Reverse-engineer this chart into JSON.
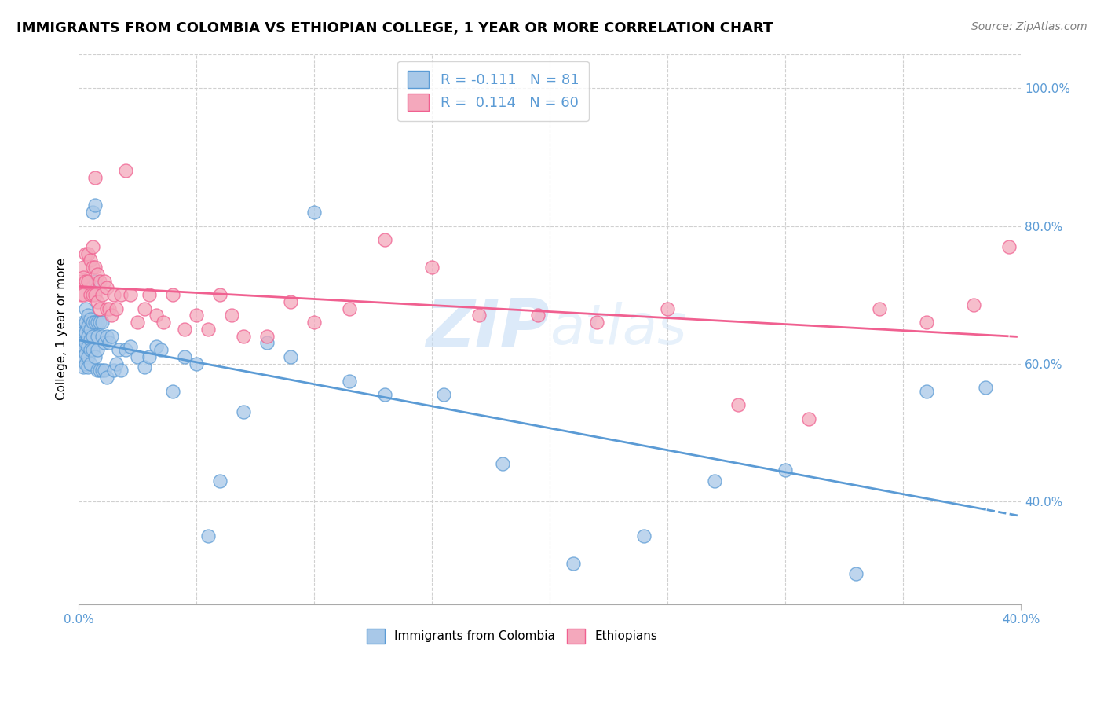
{
  "title": "IMMIGRANTS FROM COLOMBIA VS ETHIOPIAN COLLEGE, 1 YEAR OR MORE CORRELATION CHART",
  "source": "Source: ZipAtlas.com",
  "ylabel": "College, 1 year or more",
  "legend_colombia": "Immigrants from Colombia",
  "legend_ethiopians": "Ethiopians",
  "R_colombia": -0.111,
  "N_colombia": 81,
  "R_ethiopians": 0.114,
  "N_ethiopians": 60,
  "color_colombia": "#a8c8e8",
  "color_colombia_line": "#5b9bd5",
  "color_ethiopians": "#f4a8bc",
  "color_ethiopians_line": "#f06090",
  "watermark_zip": "ZIP",
  "watermark_atlas": "atlas",
  "colombia_x": [
    0.001,
    0.001,
    0.001,
    0.001,
    0.002,
    0.002,
    0.002,
    0.002,
    0.002,
    0.002,
    0.003,
    0.003,
    0.003,
    0.003,
    0.003,
    0.003,
    0.004,
    0.004,
    0.004,
    0.004,
    0.004,
    0.004,
    0.005,
    0.005,
    0.005,
    0.005,
    0.005,
    0.006,
    0.006,
    0.006,
    0.006,
    0.007,
    0.007,
    0.007,
    0.007,
    0.008,
    0.008,
    0.008,
    0.008,
    0.009,
    0.009,
    0.01,
    0.01,
    0.01,
    0.011,
    0.011,
    0.012,
    0.012,
    0.013,
    0.014,
    0.015,
    0.016,
    0.017,
    0.018,
    0.02,
    0.022,
    0.025,
    0.028,
    0.03,
    0.033,
    0.035,
    0.04,
    0.045,
    0.05,
    0.055,
    0.06,
    0.07,
    0.08,
    0.09,
    0.1,
    0.115,
    0.13,
    0.155,
    0.18,
    0.21,
    0.24,
    0.27,
    0.3,
    0.33,
    0.36,
    0.385
  ],
  "colombia_y": [
    0.65,
    0.63,
    0.62,
    0.61,
    0.66,
    0.645,
    0.63,
    0.62,
    0.61,
    0.595,
    0.68,
    0.66,
    0.645,
    0.63,
    0.615,
    0.6,
    0.67,
    0.655,
    0.64,
    0.625,
    0.61,
    0.595,
    0.665,
    0.65,
    0.635,
    0.62,
    0.6,
    0.82,
    0.66,
    0.64,
    0.62,
    0.83,
    0.72,
    0.66,
    0.61,
    0.66,
    0.64,
    0.62,
    0.59,
    0.66,
    0.59,
    0.66,
    0.64,
    0.59,
    0.63,
    0.59,
    0.64,
    0.58,
    0.63,
    0.64,
    0.59,
    0.6,
    0.62,
    0.59,
    0.62,
    0.625,
    0.61,
    0.595,
    0.61,
    0.625,
    0.62,
    0.56,
    0.61,
    0.6,
    0.35,
    0.43,
    0.53,
    0.63,
    0.61,
    0.82,
    0.575,
    0.555,
    0.555,
    0.455,
    0.31,
    0.35,
    0.43,
    0.445,
    0.295,
    0.56,
    0.565
  ],
  "ethiopian_x": [
    0.001,
    0.001,
    0.002,
    0.002,
    0.002,
    0.003,
    0.003,
    0.004,
    0.004,
    0.005,
    0.005,
    0.006,
    0.006,
    0.006,
    0.007,
    0.007,
    0.007,
    0.008,
    0.008,
    0.009,
    0.009,
    0.01,
    0.011,
    0.012,
    0.012,
    0.013,
    0.014,
    0.015,
    0.016,
    0.018,
    0.02,
    0.022,
    0.025,
    0.028,
    0.03,
    0.033,
    0.036,
    0.04,
    0.045,
    0.05,
    0.055,
    0.06,
    0.065,
    0.07,
    0.08,
    0.09,
    0.1,
    0.115,
    0.13,
    0.15,
    0.17,
    0.195,
    0.22,
    0.25,
    0.28,
    0.31,
    0.34,
    0.36,
    0.38,
    0.395
  ],
  "ethiopian_y": [
    0.72,
    0.7,
    0.74,
    0.725,
    0.7,
    0.76,
    0.72,
    0.76,
    0.72,
    0.75,
    0.7,
    0.77,
    0.74,
    0.7,
    0.87,
    0.74,
    0.7,
    0.73,
    0.69,
    0.72,
    0.68,
    0.7,
    0.72,
    0.71,
    0.68,
    0.68,
    0.67,
    0.7,
    0.68,
    0.7,
    0.88,
    0.7,
    0.66,
    0.68,
    0.7,
    0.67,
    0.66,
    0.7,
    0.65,
    0.67,
    0.65,
    0.7,
    0.67,
    0.64,
    0.64,
    0.69,
    0.66,
    0.68,
    0.78,
    0.74,
    0.67,
    0.67,
    0.66,
    0.68,
    0.54,
    0.52,
    0.68,
    0.66,
    0.685,
    0.77
  ],
  "xlim": [
    0.0,
    0.4
  ],
  "ylim": [
    0.25,
    1.05
  ],
  "xtick_labels": [
    "0.0%",
    "40.0%"
  ],
  "xtick_positions": [
    0.0,
    0.4
  ],
  "ytick_right": [
    1.0,
    0.8,
    0.6,
    0.4
  ],
  "ytick_right_labels": [
    "100.0%",
    "80.0%",
    "60.0%",
    "40.0%"
  ],
  "grid_color": "#d0d0d0",
  "background_color": "#ffffff",
  "title_fontsize": 13,
  "source_fontsize": 10,
  "tick_fontsize": 11,
  "ylabel_fontsize": 11
}
